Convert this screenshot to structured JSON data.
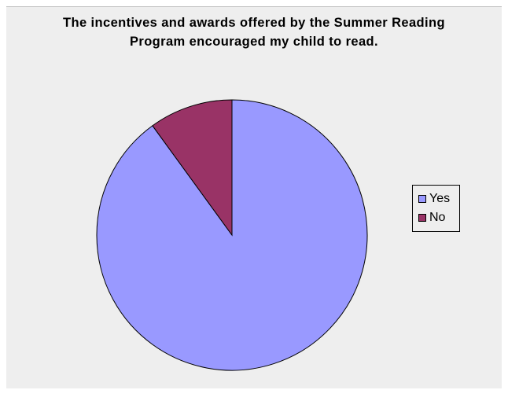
{
  "chart_data": {
    "type": "pie",
    "title": "The incentives and awards offered by the Summer Reading Program encouraged my child to read.",
    "title_lines": [
      "The incentives and awards offered by the Summer Reading",
      "Program encouraged my child to read."
    ],
    "categories": [
      "Yes",
      "No"
    ],
    "values": [
      90,
      10
    ],
    "colors": [
      "#9999ff",
      "#993366"
    ],
    "legend": {
      "placement": "right",
      "entries": [
        "Yes",
        "No"
      ]
    },
    "background": "#eeeeee",
    "edge_color": "#000000"
  }
}
